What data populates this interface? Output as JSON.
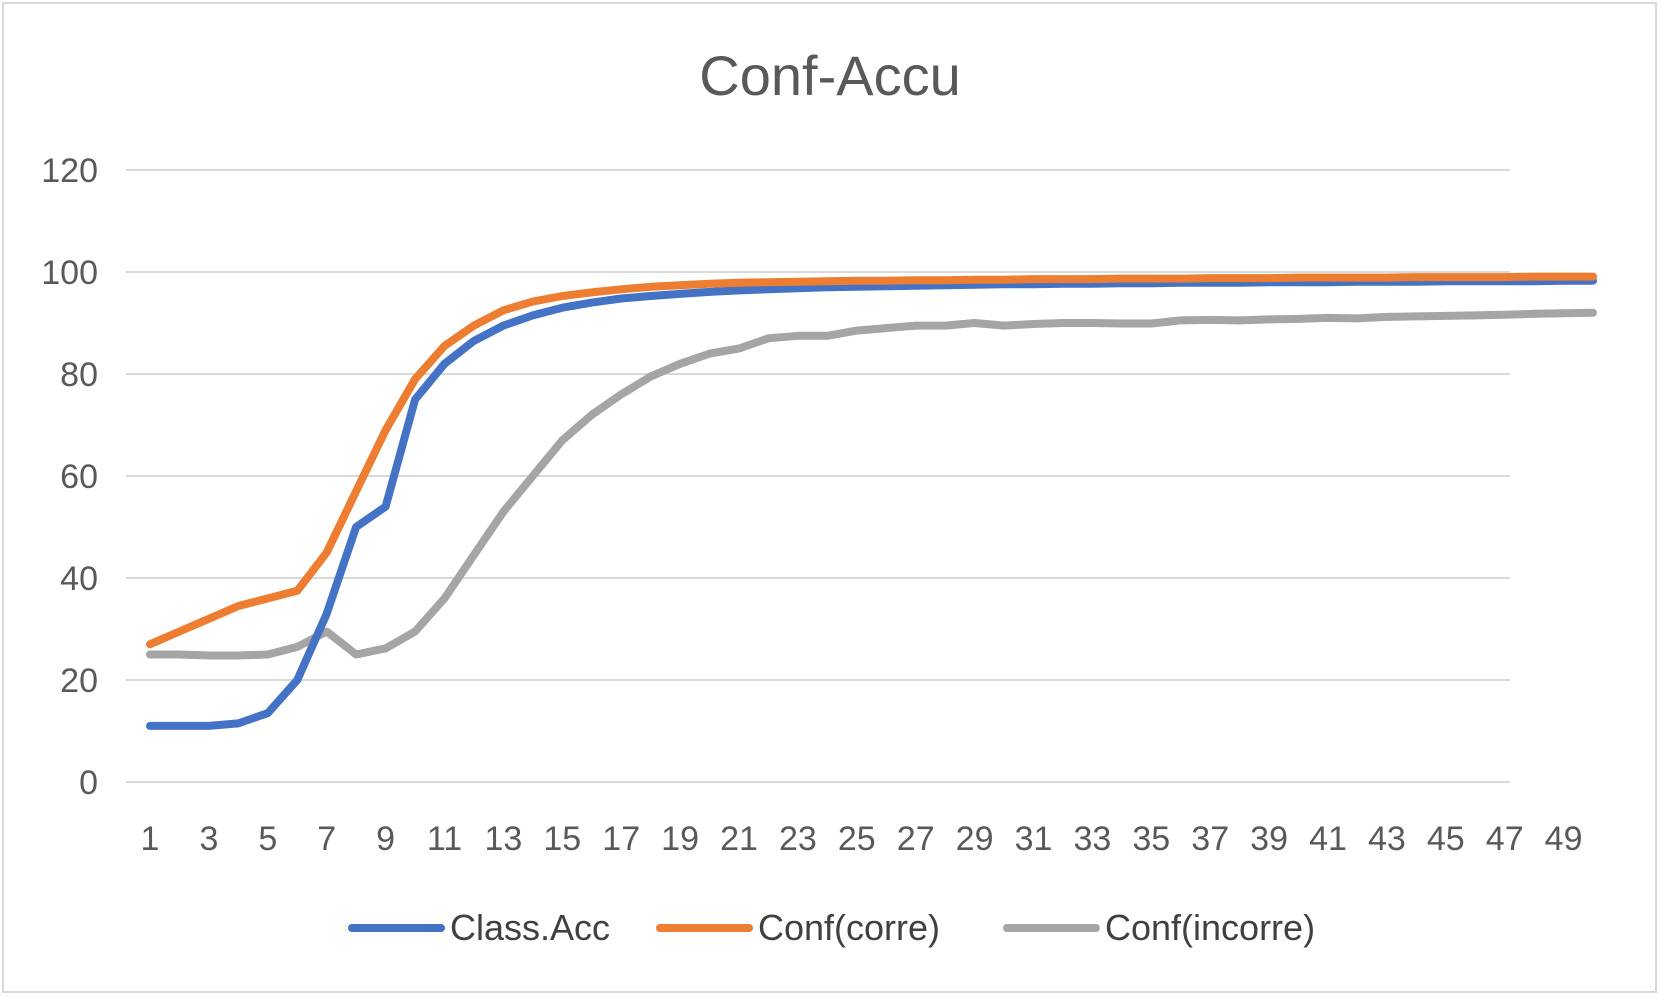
{
  "chart_data": {
    "type": "line",
    "title": "Conf-Accu",
    "xlabel": "",
    "ylabel": "",
    "ylim": [
      0,
      120
    ],
    "y_ticks": [
      "0",
      "20",
      "40",
      "60",
      "80",
      "100",
      "120"
    ],
    "x": [
      1,
      2,
      3,
      4,
      5,
      6,
      7,
      8,
      9,
      10,
      11,
      12,
      13,
      14,
      15,
      16,
      17,
      18,
      19,
      20,
      21,
      22,
      23,
      24,
      25,
      26,
      27,
      28,
      29,
      30,
      31,
      32,
      33,
      34,
      35,
      36,
      37,
      38,
      39,
      40,
      41,
      42,
      43,
      44,
      45,
      46,
      47,
      48,
      49,
      50
    ],
    "x_tick_labels": [
      "1",
      "3",
      "5",
      "7",
      "9",
      "11",
      "13",
      "15",
      "17",
      "19",
      "21",
      "23",
      "25",
      "27",
      "29",
      "31",
      "33",
      "35",
      "37",
      "39",
      "41",
      "43",
      "45",
      "47",
      "49"
    ],
    "grid": true,
    "legend_position": "bottom",
    "series": [
      {
        "name": "Class.Acc",
        "color": "#4472c4",
        "values": [
          11,
          11,
          11,
          11.5,
          13.5,
          20,
          33,
          50,
          54,
          75,
          82,
          86.5,
          89.5,
          91.5,
          93,
          94,
          94.8,
          95.3,
          95.7,
          96.1,
          96.4,
          96.6,
          96.8,
          97,
          97.1,
          97.2,
          97.3,
          97.4,
          97.5,
          97.6,
          97.6,
          97.7,
          97.7,
          97.8,
          97.8,
          97.9,
          97.9,
          97.9,
          98,
          98,
          98,
          98.1,
          98.1,
          98.1,
          98.2,
          98.2,
          98.2,
          98.2,
          98.3,
          98.3
        ]
      },
      {
        "name": "Conf(corre)",
        "color": "#ed7d31",
        "values": [
          27,
          29.5,
          32,
          34.5,
          36,
          37.5,
          45,
          57,
          69,
          79,
          85.5,
          89.5,
          92.5,
          94.2,
          95.3,
          96,
          96.6,
          97.1,
          97.4,
          97.7,
          97.9,
          98,
          98.1,
          98.2,
          98.3,
          98.3,
          98.4,
          98.4,
          98.5,
          98.5,
          98.6,
          98.6,
          98.6,
          98.7,
          98.7,
          98.7,
          98.8,
          98.8,
          98.8,
          98.9,
          98.9,
          98.9,
          98.9,
          99,
          99,
          99,
          99,
          99.1,
          99.1,
          99.1
        ]
      },
      {
        "name": "Conf(incorre)",
        "color": "#a5a5a5",
        "values": [
          25,
          25,
          24.8,
          24.8,
          25,
          26.5,
          29.5,
          25,
          26.2,
          29.5,
          36,
          44.5,
          53,
          60,
          67,
          72,
          76,
          79.5,
          82,
          84,
          85,
          87,
          87.5,
          87.5,
          88.5,
          89,
          89.5,
          89.5,
          90,
          89.5,
          89.8,
          90,
          90,
          89.9,
          89.9,
          90.5,
          90.6,
          90.5,
          90.7,
          90.8,
          91,
          90.9,
          91.2,
          91.3,
          91.4,
          91.5,
          91.6,
          91.8,
          91.9,
          92
        ]
      }
    ]
  }
}
